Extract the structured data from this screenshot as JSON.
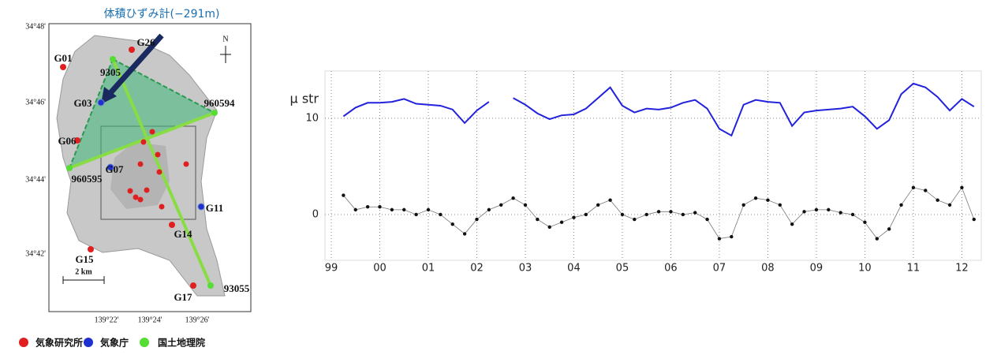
{
  "chart_data": {
    "type": "line",
    "ylabel": "μ str",
    "xlim": [
      1998.87,
      2012.4
    ],
    "ylim": [
      -4.75,
      14.9
    ],
    "xticks": [
      {
        "value": 1999,
        "label": "99"
      },
      {
        "value": 2000,
        "label": "00"
      },
      {
        "value": 2001,
        "label": "01"
      },
      {
        "value": 2002,
        "label": "02"
      },
      {
        "value": 2003,
        "label": "03"
      },
      {
        "value": 2004,
        "label": "04"
      },
      {
        "value": 2005,
        "label": "05"
      },
      {
        "value": 2006,
        "label": "06"
      },
      {
        "value": 2007,
        "label": "07"
      },
      {
        "value": 2008,
        "label": "08"
      },
      {
        "value": 2009,
        "label": "09"
      },
      {
        "value": 2010,
        "label": "10"
      },
      {
        "value": 2011,
        "label": "11"
      },
      {
        "value": 2012,
        "label": "12"
      }
    ],
    "yticks": [
      0,
      10
    ],
    "grid": true,
    "x": [
      1999.25,
      1999.5,
      1999.75,
      2000,
      2000.25,
      2000.5,
      2000.75,
      2001,
      2001.25,
      2001.5,
      2001.75,
      2002,
      2002.25,
      2002.5,
      2002.75,
      2003,
      2003.25,
      2003.5,
      2003.75,
      2004,
      2004.25,
      2004.5,
      2004.75,
      2005,
      2005.25,
      2005.5,
      2005.75,
      2006,
      2006.25,
      2006.5,
      2006.75,
      2007,
      2007.25,
      2007.5,
      2007.75,
      2008,
      2008.25,
      2008.5,
      2008.75,
      2009,
      2009.25,
      2009.5,
      2009.75,
      2010,
      2010.25,
      2010.5,
      2010.75,
      2011,
      2011.25,
      2011.5,
      2011.75,
      2012,
      2012.25
    ],
    "series": [
      {
        "color": "#2222dd",
        "marker": "line",
        "values": [
          10.2,
          11.1,
          11.6,
          11.6,
          11.7,
          12.0,
          11.5,
          11.4,
          11.3,
          10.9,
          9.5,
          10.8,
          11.7,
          null,
          12.1,
          11.4,
          10.5,
          9.9,
          10.3,
          10.4,
          11.0,
          12.1,
          13.2,
          11.3,
          10.6,
          11.0,
          10.9,
          11.1,
          11.6,
          11.9,
          11.0,
          8.9,
          8.2,
          11.4,
          11.9,
          11.7,
          11.6,
          9.2,
          10.6,
          10.8,
          10.9,
          11.0,
          11.2,
          10.2,
          8.9,
          9.8,
          12.5,
          13.6,
          13.2,
          12.2,
          10.8,
          12.0,
          11.2
        ]
      },
      {
        "color": "#111111",
        "marker": "dots",
        "values": [
          2.0,
          0.5,
          0.8,
          0.8,
          0.5,
          0.5,
          0.0,
          0.5,
          0.0,
          -1.0,
          -2.0,
          -0.5,
          0.5,
          1.0,
          1.7,
          1.0,
          -0.5,
          -1.3,
          -0.8,
          -0.3,
          0.0,
          1.0,
          1.5,
          0.0,
          -0.5,
          0.0,
          0.3,
          0.3,
          0.0,
          0.2,
          -0.5,
          -2.5,
          -2.3,
          1.0,
          1.7,
          1.5,
          1.0,
          -1.0,
          0.3,
          0.5,
          0.5,
          0.2,
          0.0,
          -0.8,
          -2.5,
          -1.5,
          1.0,
          2.8,
          2.5,
          1.5,
          1.0,
          2.8,
          -0.5
        ]
      }
    ]
  },
  "map": {
    "annotation": "体積ひずみ計(−291m)",
    "stations": [
      {
        "label": "G01",
        "color": "#e02020"
      },
      {
        "label": "G26",
        "color": "#e02020"
      },
      {
        "label": "9305",
        "color": "#55dd33"
      },
      {
        "label": "G03",
        "color": "#2030d0"
      },
      {
        "label": "960594",
        "color": "#55dd33"
      },
      {
        "label": "G06",
        "color": "#e02020"
      },
      {
        "label": "G07",
        "color": "#2030d0"
      },
      {
        "label": "960595",
        "color": "#55dd33"
      },
      {
        "label": "G11",
        "color": "#2030d0"
      },
      {
        "label": "G14",
        "color": "#e02020"
      },
      {
        "label": "G15",
        "color": "#e02020"
      },
      {
        "label": "G17",
        "color": "#e02020"
      },
      {
        "label": "93055",
        "color": "#55dd33"
      }
    ],
    "lat_labels": [
      "34°48'",
      "34°46'",
      "34°44'",
      "34°42'"
    ],
    "lon_labels": [
      "139°22'",
      "139°24'",
      "139°26'"
    ],
    "scale": "2 km",
    "north": "N",
    "legend": [
      {
        "label": "気象研究所",
        "color": "#e02020"
      },
      {
        "label": "気象庁",
        "color": "#2030d0"
      },
      {
        "label": "国土地理院",
        "color": "#55dd33"
      }
    ]
  }
}
